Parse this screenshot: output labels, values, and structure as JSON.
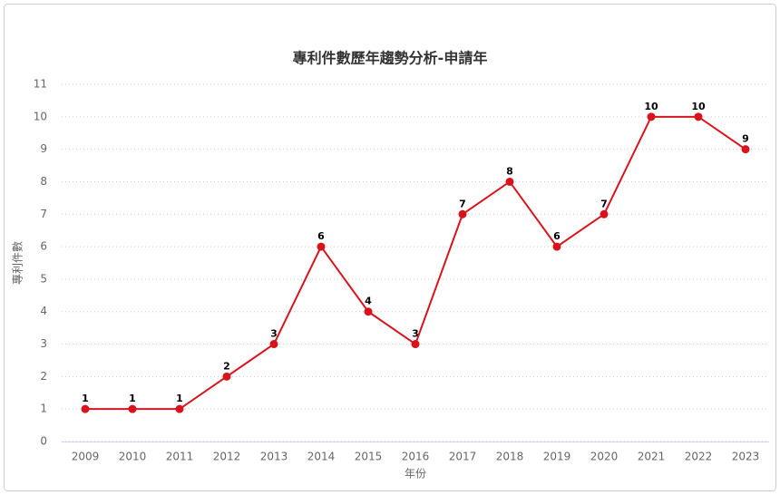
{
  "chart_data": {
    "type": "line",
    "title": "專利件數歷年趨勢分析-申請年",
    "x_label": "年份",
    "y_label": "專利件數",
    "categories": [
      "2009",
      "2010",
      "2011",
      "2012",
      "2013",
      "2014",
      "2015",
      "2016",
      "2017",
      "2018",
      "2019",
      "2020",
      "2021",
      "2022",
      "2023"
    ],
    "series": [
      {
        "name": "專利件數",
        "color": "#d7141c",
        "values": [
          1,
          1,
          1,
          2,
          3,
          6,
          4,
          3,
          7,
          8,
          6,
          7,
          10,
          10,
          9
        ]
      }
    ],
    "ylim": [
      0,
      11
    ],
    "yticks": [
      0,
      1,
      2,
      3,
      4,
      5,
      6,
      7,
      8,
      9,
      10,
      11
    ],
    "grid": true,
    "data_labels": true
  }
}
